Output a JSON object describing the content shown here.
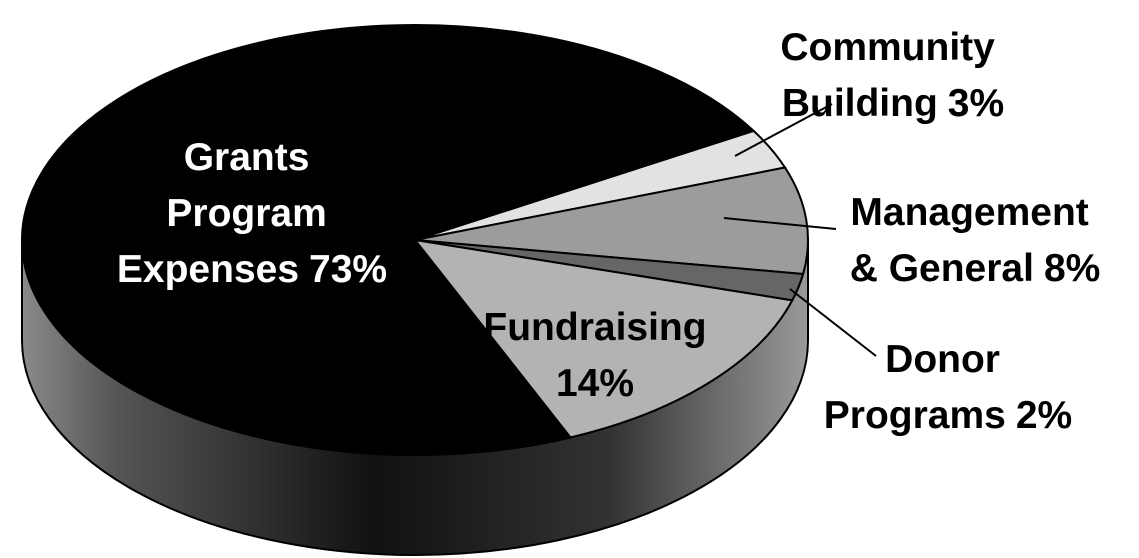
{
  "chart_data": {
    "type": "pie",
    "categories": [
      "Community Building",
      "Management & General",
      "Donor Programs",
      "Fundraising",
      "Grants Program Expenses"
    ],
    "values": [
      3,
      8,
      2,
      14,
      73
    ],
    "value_labels": [
      "3%",
      "8%",
      "2%",
      "14%",
      "73%"
    ],
    "colors": [
      "#e2e2e2",
      "#9c9c9c",
      "#666666",
      "#b3b3b3",
      "#000000"
    ]
  }
}
